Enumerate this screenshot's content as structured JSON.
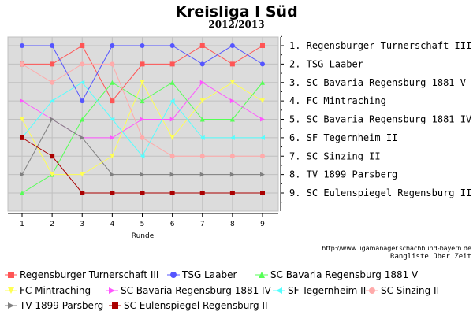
{
  "header": {
    "title": "Kreisliga I Süd",
    "subtitle": "2012/2013"
  },
  "footer": {
    "url": "http://www.ligamanager.schachbund-bayern.de",
    "caption": "Rangliste über Zeit"
  },
  "chart_data": {
    "type": "line",
    "title": "Kreisliga I Süd",
    "subtitle": "2012/2013",
    "xlabel": "Runde",
    "ylabel": "",
    "x": [
      1,
      2,
      3,
      4,
      5,
      6,
      7,
      8,
      9
    ],
    "ylim": [
      1,
      9
    ],
    "y_inverted": true,
    "grid": true,
    "legend_position": "bottom",
    "rank_labels": [
      "1. Regensburger Turnerschaft III",
      "2. TSG Laaber",
      "3. SC Bavaria Regensburg 1881 V",
      "4. FC Mintraching",
      "5. SC Bavaria Regensburg 1881 IV",
      "6. SF Tegernheim II",
      "7. SC Sinzing II",
      "8. TV 1899 Parsberg",
      "9. SC Eulenspiegel Regensburg II"
    ],
    "series": [
      {
        "name": "Regensburger Turnerschaft III",
        "color": "#ff5555",
        "marker": "square",
        "values": [
          2,
          2,
          1,
          4,
          2,
          2,
          1,
          2,
          1
        ]
      },
      {
        "name": "TSG Laaber",
        "color": "#5555ff",
        "marker": "circle",
        "values": [
          1,
          1,
          4,
          1,
          1,
          1,
          2,
          1,
          2
        ]
      },
      {
        "name": "SC Bavaria Regensburg 1881 V",
        "color": "#55ff55",
        "marker": "triangle-up",
        "values": [
          9,
          8,
          5,
          3,
          4,
          3,
          5,
          5,
          3
        ]
      },
      {
        "name": "FC Mintraching",
        "color": "#ffff55",
        "marker": "triangle-down",
        "values": [
          5,
          8,
          8,
          7,
          3,
          6,
          4,
          3,
          4
        ]
      },
      {
        "name": "SC Bavaria Regensburg 1881 IV",
        "color": "#ff55ff",
        "marker": "triangle-right",
        "values": [
          4,
          5,
          6,
          6,
          5,
          5,
          3,
          4,
          5
        ]
      },
      {
        "name": "SF Tegernheim II",
        "color": "#55ffff",
        "marker": "triangle-left",
        "values": [
          6,
          4,
          3,
          5,
          7,
          4,
          6,
          6,
          6
        ]
      },
      {
        "name": "SC Sinzing II",
        "color": "#ffaaaa",
        "marker": "circle",
        "values": [
          2,
          3,
          2,
          2,
          6,
          7,
          7,
          7,
          7
        ]
      },
      {
        "name": "TV 1899 Parsberg",
        "color": "#808080",
        "marker": "triangle-right",
        "values": [
          8,
          5,
          6,
          8,
          8,
          8,
          8,
          8,
          8
        ]
      },
      {
        "name": "SC Eulenspiegel Regensburg II",
        "color": "#aa0000",
        "marker": "square",
        "values": [
          6,
          7,
          9,
          9,
          9,
          9,
          9,
          9,
          9
        ]
      }
    ]
  }
}
